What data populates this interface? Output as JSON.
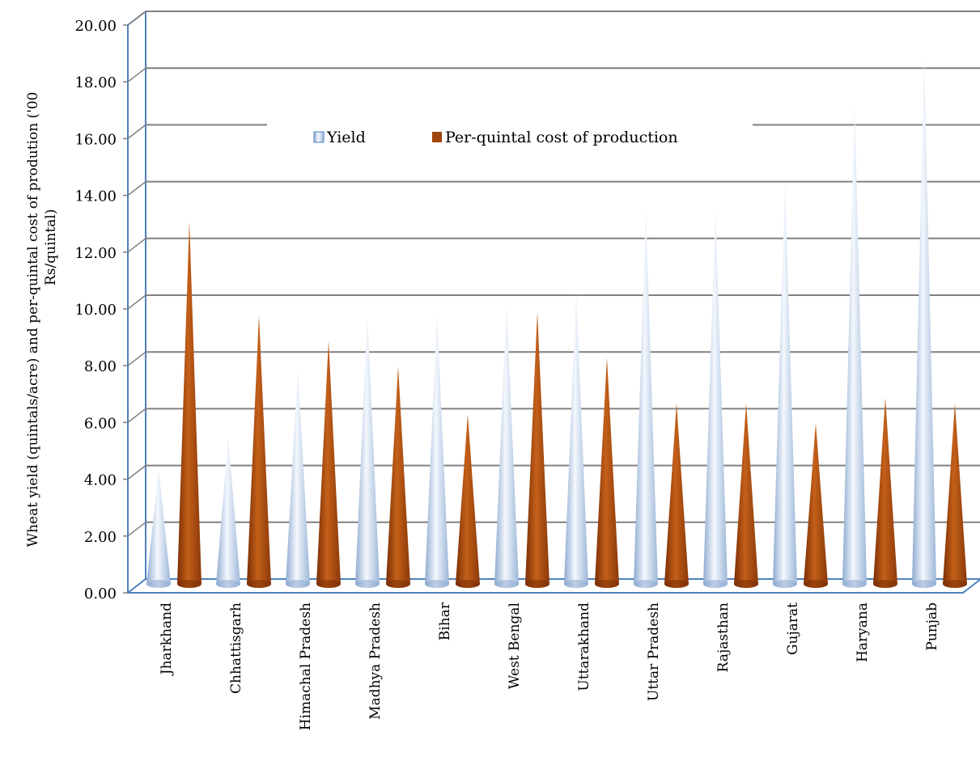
{
  "chart_data": {
    "type": "bar",
    "style": "3d-cone",
    "ylabel": "Wheat yield (quintals/acre) and per-quintal cost of prodution ('00 Rs/quintal)",
    "ylim": [
      0,
      20
    ],
    "yticks": [
      "0.00",
      "2.00",
      "4.00",
      "6.00",
      "8.00",
      "10.00",
      "12.00",
      "14.00",
      "16.00",
      "18.00",
      "20.00"
    ],
    "grid": true,
    "legend_position": "top-center",
    "categories": [
      "Jharkhand",
      "Chhattisgarh",
      "Himachal Pradesh",
      "Madhya Pradesh",
      "Bihar",
      "West Bengal",
      "Uttarakhand",
      "Uttar Pradesh",
      "Rajasthan",
      "Gujarat",
      "Haryana",
      "Punjab"
    ],
    "series": [
      {
        "name": "Yield",
        "color": "#b8cce4",
        "values": [
          3.9,
          5.0,
          7.4,
          9.3,
          9.3,
          9.7,
          10.1,
          13.0,
          13.0,
          14.0,
          16.7,
          18.4
        ]
      },
      {
        "name": "Per-quintal cost of production",
        "color": "#a0450c",
        "values": [
          12.6,
          9.3,
          8.4,
          7.5,
          5.8,
          9.4,
          7.8,
          6.2,
          6.2,
          5.5,
          6.4,
          6.2
        ]
      }
    ]
  }
}
